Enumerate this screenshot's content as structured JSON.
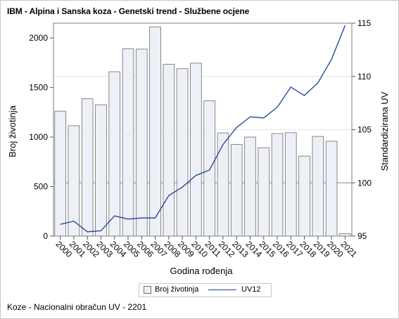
{
  "title": "IBM - Alpina i Sanska koza - Genetski trend - Službene ocjene",
  "footnote": "Koze - Nacionalni obračun UV - 2201",
  "legend": {
    "bar_label": "Broj životinja",
    "line_label": "UV12"
  },
  "colors": {
    "bar_fill": "#edf0f7",
    "bar_stroke": "#6d6d6d",
    "line": "#1f3f92",
    "reference_line": "#a0a0a0",
    "gridline": "#e4e4e4"
  },
  "chart_data": {
    "type": "bar+line",
    "xlabel": "Godina rođenja",
    "ylabel_left": "Broj životinja",
    "ylabel_right": "Standardizirana UV",
    "categories": [
      "2000",
      "2001",
      "2002",
      "2003",
      "2004",
      "2005",
      "2006",
      "2007",
      "2008",
      "2009",
      "2010",
      "2011",
      "2012",
      "2013",
      "2014",
      "2015",
      "2016",
      "2017",
      "2018",
      "2019",
      "2020",
      "2021"
    ],
    "left_axis": {
      "min": 0,
      "max": 2150,
      "ticks": [
        0,
        500,
        1000,
        1500,
        2000
      ]
    },
    "right_axis": {
      "min": 95,
      "max": 115,
      "ticks": [
        95,
        100,
        105,
        110,
        115
      ]
    },
    "series": [
      {
        "name": "Broj životinja",
        "axis": "left",
        "kind": "bar",
        "values": [
          1262,
          1115,
          1387,
          1326,
          1660,
          1891,
          1888,
          2113,
          1736,
          1691,
          1746,
          1366,
          1042,
          926,
          1000,
          892,
          1035,
          1044,
          808,
          1007,
          958,
          24
        ]
      },
      {
        "name": "UV12",
        "axis": "right",
        "kind": "line",
        "values": [
          96.1,
          96.4,
          95.4,
          95.5,
          96.9,
          96.6,
          96.7,
          96.7,
          98.8,
          99.6,
          100.7,
          101.2,
          103.6,
          105.2,
          106.2,
          106.1,
          107.1,
          109.0,
          108.2,
          109.4,
          111.6,
          114.8
        ]
      }
    ],
    "reference_lines": [
      {
        "axis": "right",
        "value": 100
      },
      {
        "axis": "right",
        "value": 105
      },
      {
        "axis": "right",
        "value": 110
      }
    ],
    "grid": false,
    "legend_position": "bottom"
  }
}
